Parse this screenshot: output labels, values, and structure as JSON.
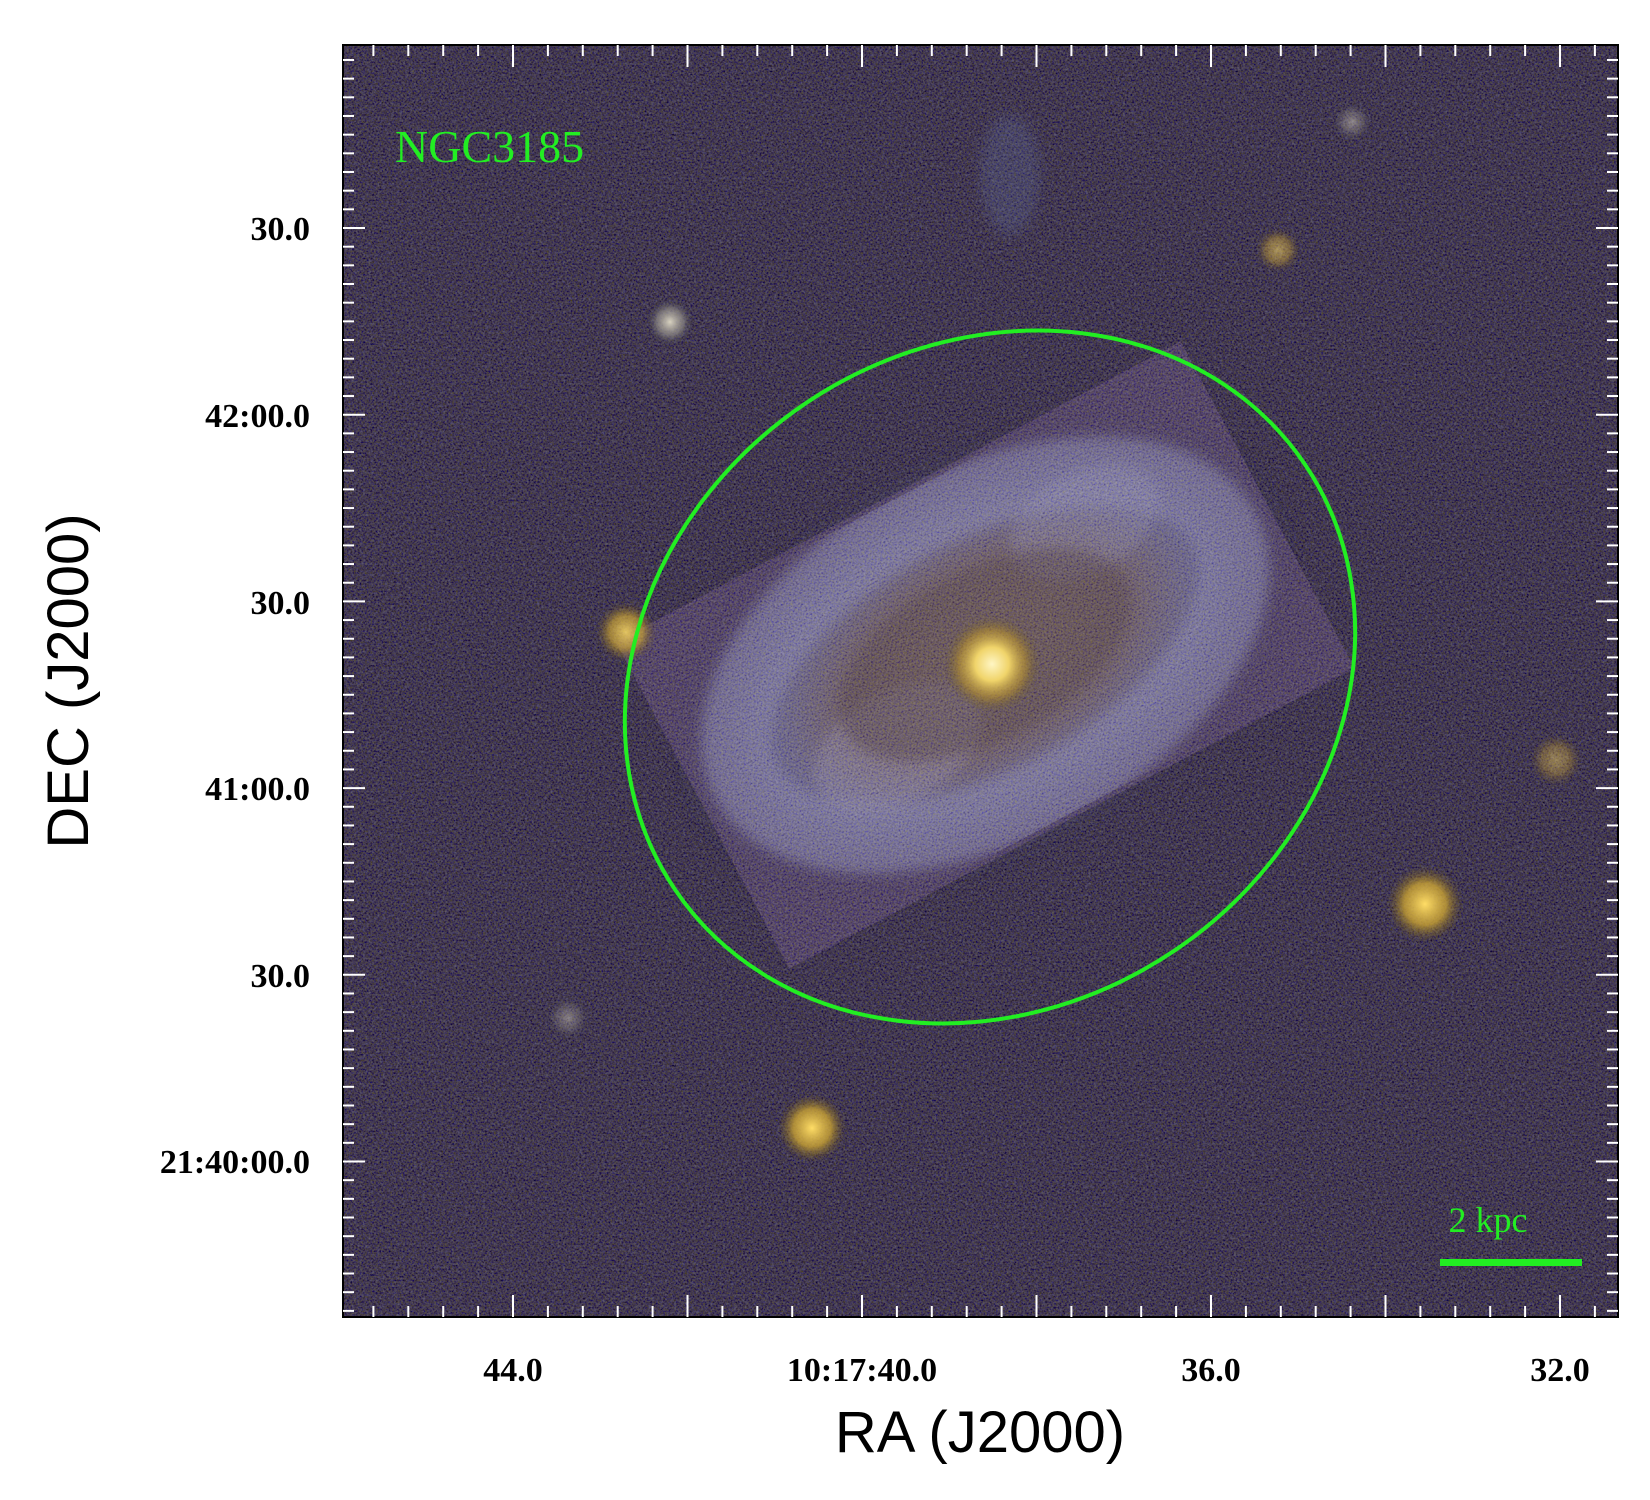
{
  "figure": {
    "object_label": "NGC3185",
    "scale_bar_label": "2 kpc",
    "x_axis_title": "RA (J2000)",
    "y_axis_title": "DEC (J2000)",
    "x_ticks": [
      {
        "label": "44.0"
      },
      {
        "label": "10:17:40.0"
      },
      {
        "label": "36.0"
      },
      {
        "label": "32.0"
      }
    ],
    "y_ticks": [
      {
        "label": "30.0"
      },
      {
        "label": "42:00.0"
      },
      {
        "label": "30.0"
      },
      {
        "label": "41:00.0"
      },
      {
        "label": "30.0"
      },
      {
        "label": "21:40:00.0"
      }
    ],
    "colors": {
      "annotation_green": "#22ee22",
      "sky_background": "#08080c",
      "galaxy_blue": "#8f9fc4",
      "galaxy_gold": "#c2a24a",
      "nucleus": "#fff3b0"
    }
  }
}
